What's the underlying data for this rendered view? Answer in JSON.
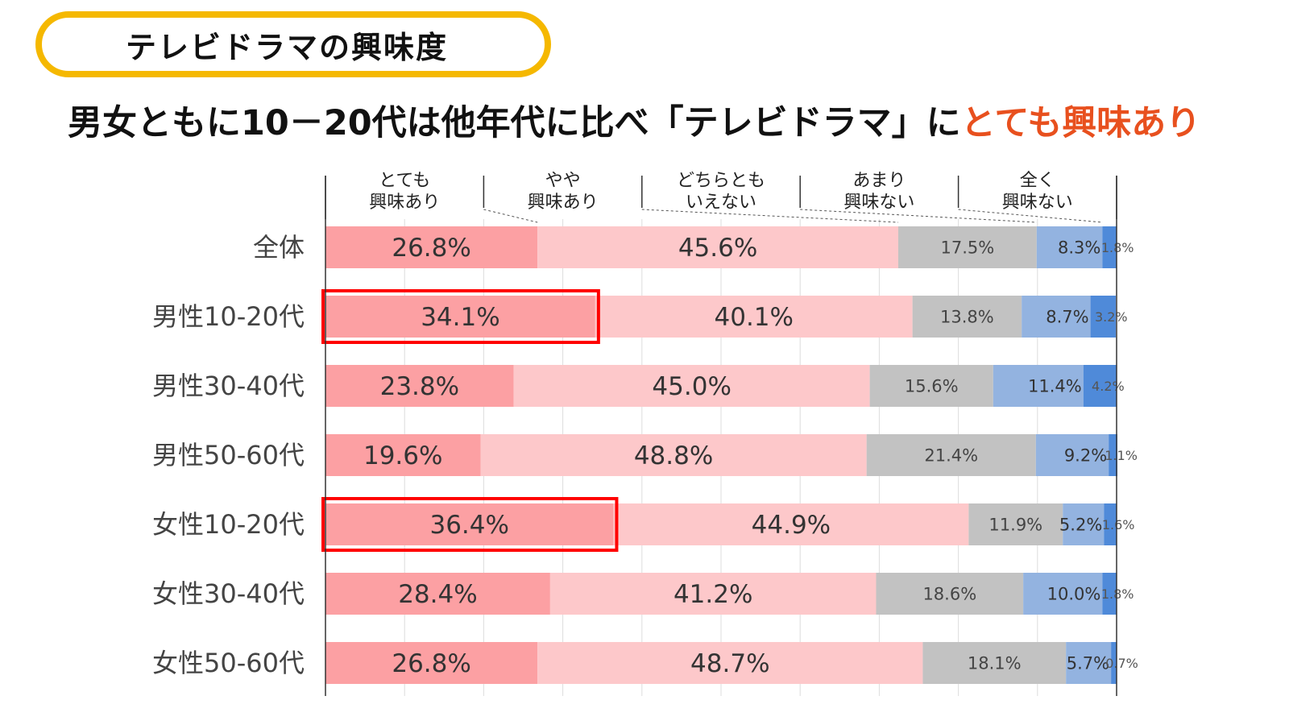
{
  "header": {
    "badge": "テレビドラマの興味度",
    "headline_main": "男女ともに10－20代は他年代に比べ「テレビドラマ」に",
    "headline_accent": "とても興味あり"
  },
  "colors": {
    "accent": "#e8501e",
    "badge_border": "#f5b800",
    "highlight": "#ff0000",
    "series": [
      "#fca0a3",
      "#fdc8ca",
      "#c2c2c2",
      "#93b3e0",
      "#4f8ad9"
    ]
  },
  "chart_data": {
    "type": "bar",
    "orientation": "horizontal",
    "stacked": true,
    "percent": true,
    "legend_position": "top",
    "xlim": [
      0,
      100
    ],
    "grid": true,
    "categories": [
      "全体",
      "男性10-20代",
      "男性30-40代",
      "男性50-60代",
      "女性10-20代",
      "女性30-40代",
      "女性50-60代"
    ],
    "series": [
      {
        "name": "とても\n興味あり",
        "values": [
          26.8,
          34.1,
          23.8,
          19.6,
          36.4,
          28.4,
          26.8
        ]
      },
      {
        "name": "やや\n興味あり",
        "values": [
          45.6,
          40.1,
          45.0,
          48.8,
          44.9,
          41.2,
          48.7
        ]
      },
      {
        "name": "どちらとも\nいえない",
        "values": [
          17.5,
          13.8,
          15.6,
          21.4,
          11.9,
          18.6,
          18.1
        ]
      },
      {
        "name": "あまり\n興味ない",
        "values": [
          8.3,
          8.7,
          11.4,
          9.2,
          5.2,
          10.0,
          5.7
        ]
      },
      {
        "name": "全く\n興味ない",
        "values": [
          1.8,
          3.2,
          4.2,
          1.1,
          1.6,
          1.8,
          0.7
        ]
      }
    ],
    "labels": [
      [
        "26.8%",
        "45.6%",
        "17.5%",
        "8.3%",
        "1.8%"
      ],
      [
        "34.1%",
        "40.1%",
        "13.8%",
        "8.7%",
        "3.2%"
      ],
      [
        "23.8%",
        "45.0%",
        "15.6%",
        "11.4%",
        "4.2%"
      ],
      [
        "19.6%",
        "48.8%",
        "21.4%",
        "9.2%",
        "1.1%"
      ],
      [
        "36.4%",
        "44.9%",
        "11.9%",
        "5.2%",
        "1.6%"
      ],
      [
        "28.4%",
        "41.2%",
        "18.6%",
        "10.0%",
        "1.8%"
      ],
      [
        "26.8%",
        "48.7%",
        "18.1%",
        "5.7%",
        "0.7%"
      ]
    ],
    "highlighted_categories": [
      "男性10-20代",
      "女性10-20代"
    ]
  }
}
